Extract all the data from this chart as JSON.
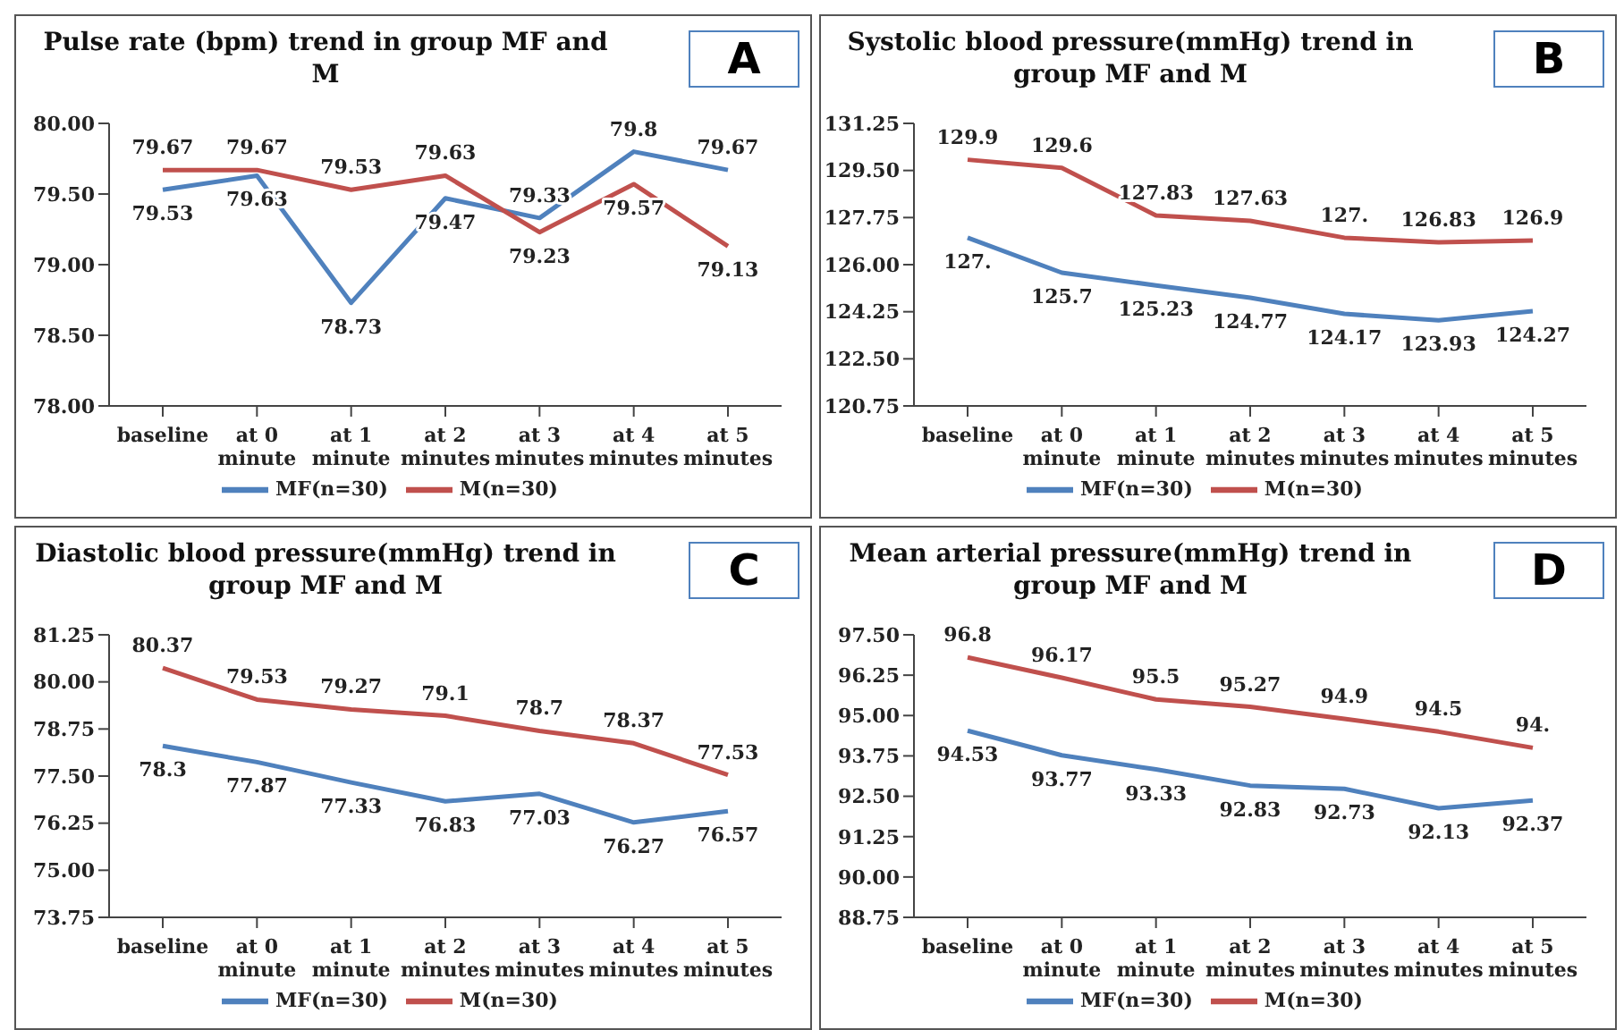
{
  "chart_data": [
    {
      "type": "line",
      "title": "Pulse rate (bpm) trend in group MF and M",
      "annotations": [
        "A"
      ],
      "categories": [
        "baseline",
        "at 0 minute",
        "at 1 minute",
        "at 2 minutes",
        "at 3 minutes",
        "at 4 minutes",
        "at 5 minutes"
      ],
      "series": [
        {
          "name": "MF(n=30)",
          "color": "#4f81bd",
          "values": [
            79.53,
            79.63,
            78.73,
            79.47,
            79.33,
            79.8,
            79.67
          ],
          "value_labels": [
            "79.53",
            "79.63",
            "78.73",
            "79.47",
            "79.33",
            "79.8",
            "79.67"
          ]
        },
        {
          "name": "M(n=30)",
          "color": "#c0504d",
          "values": [
            79.67,
            79.67,
            79.53,
            79.63,
            79.23,
            79.57,
            79.13
          ],
          "value_labels": [
            "79.67",
            "79.67",
            "79.53",
            "79.63",
            "79.23",
            "79.57",
            "79.13"
          ]
        }
      ],
      "ylim": [
        78,
        80
      ],
      "yticks": [
        {
          "value": 78,
          "label": "78.00"
        },
        {
          "value": 78.5,
          "label": "78.50"
        },
        {
          "value": 79,
          "label": "79.00"
        },
        {
          "value": 79.5,
          "label": "79.50"
        },
        {
          "value": 80,
          "label": "80.00"
        }
      ],
      "grid": false,
      "legend": "bottom",
      "marker": "none",
      "line_style": "solid"
    },
    {
      "type": "line",
      "title": "Systolic blood pressure(mmHg) trend in group MF and M",
      "annotations": [
        "B"
      ],
      "categories": [
        "baseline",
        "at 0 minute",
        "at 1 minute",
        "at 2 minutes",
        "at 3 minutes",
        "at 4 minutes",
        "at 5 minutes"
      ],
      "series": [
        {
          "name": "MF(n=30)",
          "color": "#4f81bd",
          "values": [
            127,
            125.7,
            125.23,
            124.77,
            124.17,
            123.93,
            124.27
          ],
          "value_labels": [
            "127.",
            "125.7",
            "125.23",
            "124.77",
            "124.17",
            "123.93",
            "124.27"
          ]
        },
        {
          "name": "M(n=30)",
          "color": "#c0504d",
          "values": [
            129.9,
            129.6,
            127.83,
            127.63,
            127,
            126.83,
            126.9
          ],
          "value_labels": [
            "129.9",
            "129.6",
            "127.83",
            "127.63",
            "127.",
            "126.83",
            "126.9"
          ]
        }
      ],
      "ylim": [
        120.75,
        131.25
      ],
      "yticks": [
        {
          "value": 120.75,
          "label": "120.75"
        },
        {
          "value": 122.5,
          "label": "122.50"
        },
        {
          "value": 124.25,
          "label": "124.25"
        },
        {
          "value": 126,
          "label": "126.00"
        },
        {
          "value": 127.75,
          "label": "127.75"
        },
        {
          "value": 129.5,
          "label": "129.50"
        },
        {
          "value": 131.25,
          "label": "131.25"
        }
      ],
      "grid": false,
      "legend": "bottom",
      "marker": "none",
      "line_style": "solid"
    },
    {
      "type": "line",
      "title": "Diastolic blood pressure(mmHg) trend in group MF and M",
      "annotations": [
        "C"
      ],
      "categories": [
        "baseline",
        "at 0 minute",
        "at 1 minute",
        "at 2 minutes",
        "at 3 minutes",
        "at 4 minutes",
        "at 5 minutes"
      ],
      "series": [
        {
          "name": "MF(n=30)",
          "color": "#4f81bd",
          "values": [
            78.3,
            77.87,
            77.33,
            76.83,
            77.03,
            76.27,
            76.57
          ],
          "value_labels": [
            "78.3",
            "77.87",
            "77.33",
            "76.83",
            "77.03",
            "76.27",
            "76.57"
          ]
        },
        {
          "name": "M(n=30)",
          "color": "#c0504d",
          "values": [
            80.37,
            79.53,
            79.27,
            79.1,
            78.7,
            78.37,
            77.53
          ],
          "value_labels": [
            "80.37",
            "79.53",
            "79.27",
            "79.1",
            "78.7",
            "78.37",
            "77.53"
          ]
        }
      ],
      "ylim": [
        73.75,
        81.25
      ],
      "yticks": [
        {
          "value": 73.75,
          "label": "73.75"
        },
        {
          "value": 75,
          "label": "75.00"
        },
        {
          "value": 76.25,
          "label": "76.25"
        },
        {
          "value": 77.5,
          "label": "77.50"
        },
        {
          "value": 78.75,
          "label": "78.75"
        },
        {
          "value": 80,
          "label": "80.00"
        },
        {
          "value": 81.25,
          "label": "81.25"
        }
      ],
      "grid": false,
      "legend": "bottom",
      "marker": "none",
      "line_style": "solid"
    },
    {
      "type": "line",
      "title": "Mean arterial pressure(mmHg) trend in group MF and M",
      "annotations": [
        "D"
      ],
      "categories": [
        "baseline",
        "at 0 minute",
        "at 1 minute",
        "at 2 minutes",
        "at 3 minutes",
        "at 4 minutes",
        "at 5 minutes"
      ],
      "series": [
        {
          "name": "MF(n=30)",
          "color": "#4f81bd",
          "values": [
            94.53,
            93.77,
            93.33,
            92.83,
            92.73,
            92.13,
            92.37
          ],
          "value_labels": [
            "94.53",
            "93.77",
            "93.33",
            "92.83",
            "92.73",
            "92.13",
            "92.37"
          ]
        },
        {
          "name": "M(n=30)",
          "color": "#c0504d",
          "values": [
            96.8,
            96.17,
            95.5,
            95.27,
            94.9,
            94.5,
            94
          ],
          "value_labels": [
            "96.8",
            "96.17",
            "95.5",
            "95.27",
            "94.9",
            "94.5",
            "94."
          ]
        }
      ],
      "ylim": [
        88.75,
        97.5
      ],
      "yticks": [
        {
          "value": 88.75,
          "label": "88.75"
        },
        {
          "value": 90,
          "label": "90.00"
        },
        {
          "value": 91.25,
          "label": "91.25"
        },
        {
          "value": 92.5,
          "label": "92.50"
        },
        {
          "value": 93.75,
          "label": "93.75"
        },
        {
          "value": 95,
          "label": "95.00"
        },
        {
          "value": 96.25,
          "label": "96.25"
        },
        {
          "value": 97.5,
          "label": "97.50"
        }
      ],
      "grid": false,
      "legend": "bottom",
      "marker": "none",
      "line_style": "solid"
    }
  ]
}
